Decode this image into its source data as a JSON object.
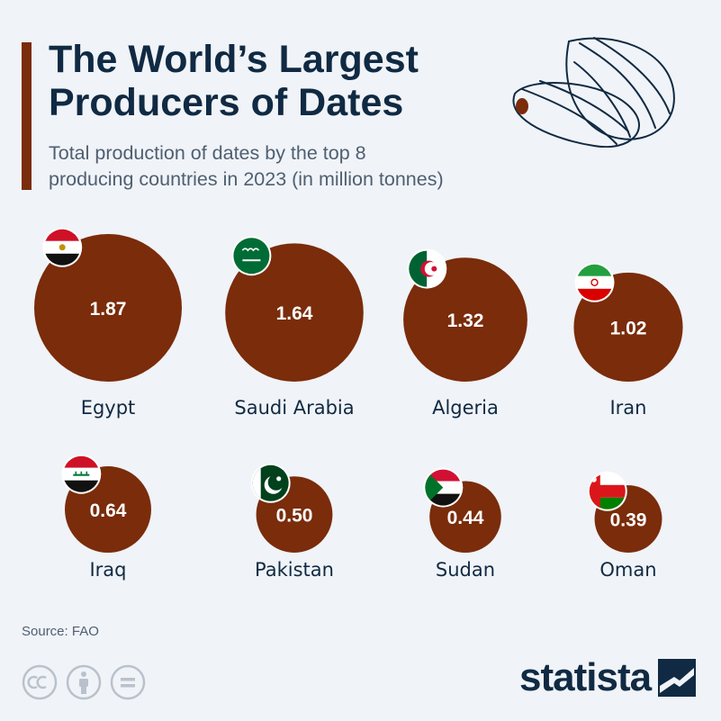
{
  "header": {
    "title_line1": "The World’s Largest",
    "title_line2": "Producers of Dates",
    "subtitle_line1": "Total production of dates by the top 8",
    "subtitle_line2": "producing countries in 2023 (in million tonnes)"
  },
  "colors": {
    "bubble": "#7a2c0b",
    "title": "#102a43",
    "subtitle": "#4f5f72",
    "background": "#f0f3f7"
  },
  "chart_data": {
    "type": "bubble",
    "unit": "million tonnes",
    "categories": [
      "Egypt",
      "Saudi Arabia",
      "Algeria",
      "Iran",
      "Iraq",
      "Pakistan",
      "Sudan",
      "Oman"
    ],
    "values": [
      1.87,
      1.64,
      1.32,
      1.02,
      0.64,
      0.5,
      0.44,
      0.39
    ],
    "value_labels": [
      "1.87",
      "1.64",
      "1.32",
      "1.02",
      "0.64",
      "0.50",
      "0.44",
      "0.39"
    ],
    "flags": [
      "egypt-flag-icon",
      "saudi-arabia-flag-icon",
      "algeria-flag-icon",
      "iran-flag-icon",
      "iraq-flag-icon",
      "pakistan-flag-icon",
      "sudan-flag-icon",
      "oman-flag-icon"
    ]
  },
  "footer": {
    "source": "Source: FAO",
    "brand": "statista",
    "license_icons": [
      "creative-commons-icon",
      "attribution-icon",
      "no-derivatives-icon"
    ]
  }
}
